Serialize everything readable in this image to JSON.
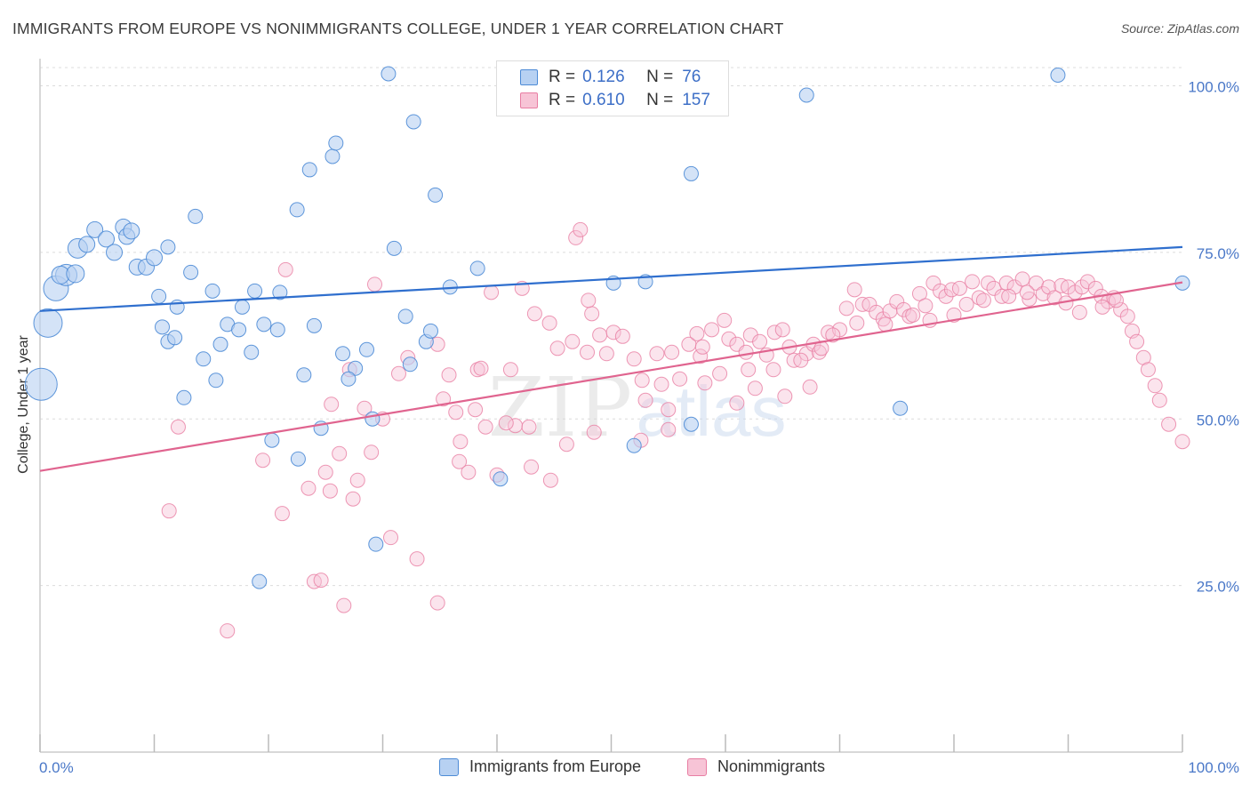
{
  "title": "IMMIGRANTS FROM EUROPE VS NONIMMIGRANTS COLLEGE, UNDER 1 YEAR CORRELATION CHART",
  "source": "Source: ZipAtlas.com",
  "legend": {
    "series1": {
      "r_label": "R =",
      "r_value": "0.126",
      "n_label": "N =",
      "n_value": "76"
    },
    "series2": {
      "r_label": "R =",
      "r_value": "0.610",
      "n_label": "N =",
      "n_value": "157"
    }
  },
  "colors": {
    "blue_fill": "#b7d1f2",
    "blue_stroke": "#4d8bd6",
    "blue_line": "#2f6fce",
    "pink_fill": "#f7c4d6",
    "pink_stroke": "#e87ea3",
    "pink_line": "#e0648f",
    "tick_label": "#4a78c8",
    "grid": "#dcdcdc"
  },
  "chart_data": {
    "type": "scatter",
    "title": "IMMIGRANTS FROM EUROPE VS NONIMMIGRANTS COLLEGE, UNDER 1 YEAR CORRELATION CHART",
    "ylabel": "College, Under 1 year",
    "xlabel": "",
    "xlim": [
      0,
      100
    ],
    "ylim": [
      0,
      103
    ],
    "x_tick_labels": [
      "0.0%",
      "100.0%"
    ],
    "y_tick_labels": [
      "100.0%",
      "75.0%",
      "50.0%",
      "25.0%"
    ],
    "y_tick_values": [
      100,
      75,
      50,
      25
    ],
    "grid": "horizontal dashed",
    "legend_position": "top-center",
    "watermark": "ZIPatlas",
    "series": [
      {
        "name": "Immigrants from Europe",
        "color": "#4d8bd6",
        "trend": {
          "x": [
            0,
            100
          ],
          "y": [
            66.2,
            75.8
          ]
        },
        "points": [
          [
            0.1,
            55.2,
            18
          ],
          [
            0.7,
            64.4,
            16
          ],
          [
            1.4,
            69.6,
            14
          ],
          [
            2.3,
            71.6,
            12
          ],
          [
            3.3,
            75.6,
            11
          ],
          [
            1.8,
            71.6,
            10
          ],
          [
            3.1,
            71.8,
            10
          ],
          [
            4.1,
            76.2,
            9
          ],
          [
            4.8,
            78.4,
            9
          ],
          [
            5.8,
            77.0,
            9
          ],
          [
            6.5,
            75.0,
            9
          ],
          [
            7.3,
            78.8,
            9
          ],
          [
            7.6,
            77.4,
            9
          ],
          [
            8.0,
            78.2,
            9
          ],
          [
            8.5,
            72.8,
            9
          ],
          [
            9.3,
            72.8,
            9
          ],
          [
            10.0,
            74.2,
            9
          ],
          [
            10.4,
            68.4,
            8
          ],
          [
            10.7,
            63.8,
            8
          ],
          [
            11.2,
            61.6,
            8
          ],
          [
            11.8,
            62.2,
            8
          ],
          [
            11.2,
            75.8,
            8
          ],
          [
            12.0,
            66.8,
            8
          ],
          [
            12.6,
            53.2,
            8
          ],
          [
            13.2,
            72.0,
            8
          ],
          [
            13.6,
            80.4,
            8
          ],
          [
            14.3,
            59.0,
            8
          ],
          [
            15.1,
            69.2,
            8
          ],
          [
            15.4,
            55.8,
            8
          ],
          [
            15.8,
            61.2,
            8
          ],
          [
            16.4,
            64.2,
            8
          ],
          [
            17.4,
            63.4,
            8
          ],
          [
            17.7,
            66.8,
            8
          ],
          [
            18.5,
            60.0,
            8
          ],
          [
            18.8,
            69.2,
            8
          ],
          [
            19.2,
            25.6,
            8
          ],
          [
            19.6,
            64.2,
            8
          ],
          [
            20.3,
            46.8,
            8
          ],
          [
            20.8,
            63.4,
            8
          ],
          [
            21.0,
            69.0,
            8
          ],
          [
            22.5,
            81.4,
            8
          ],
          [
            22.6,
            44.0,
            8
          ],
          [
            23.1,
            56.6,
            8
          ],
          [
            23.6,
            87.4,
            8
          ],
          [
            24.0,
            64.0,
            8
          ],
          [
            24.6,
            48.6,
            8
          ],
          [
            25.6,
            89.4,
            8
          ],
          [
            25.9,
            91.4,
            8
          ],
          [
            26.5,
            59.8,
            8
          ],
          [
            27.6,
            57.6,
            8
          ],
          [
            27.0,
            56.0,
            8
          ],
          [
            28.6,
            60.4,
            8
          ],
          [
            29.1,
            50.0,
            8
          ],
          [
            29.4,
            31.2,
            8
          ],
          [
            30.5,
            101.8,
            8
          ],
          [
            31.0,
            75.6,
            8
          ],
          [
            32.0,
            65.4,
            8
          ],
          [
            32.4,
            58.2,
            8
          ],
          [
            32.7,
            94.6,
            8
          ],
          [
            33.8,
            61.6,
            8
          ],
          [
            34.2,
            63.2,
            8
          ],
          [
            34.6,
            83.6,
            8
          ],
          [
            35.9,
            69.8,
            8
          ],
          [
            38.3,
            72.6,
            8
          ],
          [
            40.3,
            41.0,
            8
          ],
          [
            50.0,
            100.6,
            8
          ],
          [
            50.2,
            70.4,
            8
          ],
          [
            52.0,
            46.0,
            8
          ],
          [
            53.0,
            70.6,
            8
          ],
          [
            57.0,
            49.2,
            8
          ],
          [
            57.0,
            86.8,
            8
          ],
          [
            67.1,
            98.6,
            8
          ],
          [
            75.3,
            51.6,
            8
          ],
          [
            89.1,
            101.6,
            8
          ],
          [
            100.0,
            70.4,
            8
          ],
          [
            0.0,
            0.0,
            0
          ]
        ]
      },
      {
        "name": "Nonimmigrants",
        "color": "#e87ea3",
        "trend": {
          "x": [
            0,
            100
          ],
          "y": [
            42.2,
            70.5
          ]
        },
        "points": [
          [
            11.3,
            36.2
          ],
          [
            12.1,
            48.8
          ],
          [
            16.4,
            18.2
          ],
          [
            19.5,
            43.8
          ],
          [
            21.2,
            35.8
          ],
          [
            21.5,
            72.4
          ],
          [
            23.5,
            39.6
          ],
          [
            24.0,
            25.6
          ],
          [
            24.6,
            25.8
          ],
          [
            25.0,
            42.0
          ],
          [
            25.4,
            39.2
          ],
          [
            25.5,
            52.2
          ],
          [
            26.2,
            44.8
          ],
          [
            27.1,
            57.4
          ],
          [
            27.4,
            38.0
          ],
          [
            27.8,
            40.8
          ],
          [
            28.4,
            51.6
          ],
          [
            29.0,
            45.0
          ],
          [
            29.3,
            70.2
          ],
          [
            30.0,
            50.0
          ],
          [
            30.7,
            32.2
          ],
          [
            31.4,
            56.8
          ],
          [
            32.2,
            59.2
          ],
          [
            33.0,
            29.0
          ],
          [
            34.8,
            61.2
          ],
          [
            35.3,
            53.0
          ],
          [
            35.8,
            56.6
          ],
          [
            36.4,
            51.0
          ],
          [
            36.7,
            43.6
          ],
          [
            37.5,
            42.0
          ],
          [
            38.1,
            51.4
          ],
          [
            38.3,
            57.4
          ],
          [
            38.6,
            57.6
          ],
          [
            39.0,
            48.8
          ],
          [
            39.5,
            69.0
          ],
          [
            40.0,
            41.6
          ],
          [
            41.2,
            57.4
          ],
          [
            41.6,
            49.0
          ],
          [
            42.2,
            69.6
          ],
          [
            42.8,
            48.8
          ],
          [
            43.3,
            65.8
          ],
          [
            44.6,
            64.4
          ],
          [
            45.3,
            60.6
          ],
          [
            46.1,
            46.2
          ],
          [
            46.6,
            61.6
          ],
          [
            46.9,
            77.2
          ],
          [
            47.3,
            78.4
          ],
          [
            47.9,
            60.0
          ],
          [
            48.3,
            65.8
          ],
          [
            49.0,
            62.6
          ],
          [
            49.6,
            59.8
          ],
          [
            50.2,
            63.0
          ],
          [
            51.0,
            62.4
          ],
          [
            52.0,
            59.0
          ],
          [
            52.7,
            55.8
          ],
          [
            53.0,
            52.8
          ],
          [
            54.0,
            59.8
          ],
          [
            54.4,
            55.2
          ],
          [
            55.0,
            51.4
          ],
          [
            55.3,
            60.0
          ],
          [
            56.0,
            56.0
          ],
          [
            56.8,
            61.2
          ],
          [
            57.5,
            62.8
          ],
          [
            57.8,
            59.4
          ],
          [
            58.2,
            55.4
          ],
          [
            58.8,
            63.4
          ],
          [
            59.5,
            56.8
          ],
          [
            59.9,
            64.8
          ],
          [
            60.3,
            62.0
          ],
          [
            61.0,
            61.2
          ],
          [
            61.8,
            60.0
          ],
          [
            62.2,
            62.6
          ],
          [
            63.0,
            61.6
          ],
          [
            63.6,
            59.6
          ],
          [
            64.3,
            63.0
          ],
          [
            65.0,
            63.4
          ],
          [
            65.6,
            60.8
          ],
          [
            66.0,
            58.8
          ],
          [
            67.1,
            59.8
          ],
          [
            67.7,
            61.2
          ],
          [
            68.2,
            60.0
          ],
          [
            69.0,
            63.0
          ],
          [
            70.0,
            63.4
          ],
          [
            70.6,
            66.6
          ],
          [
            71.3,
            69.4
          ],
          [
            72.0,
            67.2
          ],
          [
            72.6,
            67.2
          ],
          [
            73.2,
            66.0
          ],
          [
            73.8,
            65.0
          ],
          [
            74.4,
            66.2
          ],
          [
            75.0,
            67.6
          ],
          [
            75.6,
            66.4
          ],
          [
            76.1,
            65.4
          ],
          [
            77.0,
            68.8
          ],
          [
            77.5,
            67.0
          ],
          [
            78.2,
            70.4
          ],
          [
            78.8,
            69.2
          ],
          [
            79.3,
            68.4
          ],
          [
            79.8,
            69.4
          ],
          [
            80.5,
            69.6
          ],
          [
            81.1,
            67.2
          ],
          [
            81.6,
            70.6
          ],
          [
            82.2,
            68.2
          ],
          [
            83.0,
            70.4
          ],
          [
            83.5,
            69.6
          ],
          [
            84.2,
            68.4
          ],
          [
            84.6,
            70.4
          ],
          [
            85.3,
            69.8
          ],
          [
            86.0,
            71.0
          ],
          [
            86.6,
            68.0
          ],
          [
            87.2,
            70.4
          ],
          [
            87.8,
            68.8
          ],
          [
            88.3,
            69.8
          ],
          [
            88.8,
            68.2
          ],
          [
            89.4,
            70.0
          ],
          [
            90.0,
            69.8
          ],
          [
            90.6,
            69.0
          ],
          [
            91.2,
            69.8
          ],
          [
            91.7,
            70.6
          ],
          [
            92.4,
            69.6
          ],
          [
            92.9,
            68.4
          ],
          [
            93.5,
            67.6
          ],
          [
            94.0,
            68.2
          ],
          [
            94.6,
            66.4
          ],
          [
            95.2,
            65.4
          ],
          [
            95.6,
            63.2
          ],
          [
            96.0,
            61.6
          ],
          [
            96.6,
            59.2
          ],
          [
            97.0,
            57.4
          ],
          [
            97.6,
            55.0
          ],
          [
            98.0,
            52.8
          ],
          [
            98.8,
            49.2
          ],
          [
            100.0,
            46.6
          ],
          [
            26.6,
            22.0
          ],
          [
            34.8,
            22.4
          ],
          [
            43.0,
            42.8
          ],
          [
            40.8,
            49.4
          ],
          [
            44.7,
            40.8
          ],
          [
            48.0,
            67.8
          ],
          [
            48.5,
            48.0
          ],
          [
            55.0,
            48.4
          ],
          [
            58.0,
            60.8
          ],
          [
            61.0,
            52.4
          ],
          [
            62.0,
            57.4
          ],
          [
            64.2,
            57.4
          ],
          [
            66.6,
            58.8
          ],
          [
            68.4,
            60.6
          ],
          [
            69.4,
            62.6
          ],
          [
            71.5,
            64.4
          ],
          [
            74.0,
            64.2
          ],
          [
            76.4,
            65.6
          ],
          [
            77.9,
            64.8
          ],
          [
            80.0,
            65.6
          ],
          [
            82.6,
            67.8
          ],
          [
            84.8,
            68.4
          ],
          [
            86.4,
            69.0
          ],
          [
            89.8,
            67.4
          ],
          [
            91.0,
            66.0
          ],
          [
            93.0,
            66.8
          ],
          [
            94.2,
            67.8
          ],
          [
            36.8,
            46.6
          ],
          [
            52.6,
            46.8
          ],
          [
            62.6,
            54.6
          ],
          [
            67.4,
            54.8
          ],
          [
            65.2,
            53.4
          ]
        ]
      }
    ]
  },
  "bottom_legend": {
    "item1": "Immigrants from Europe",
    "item2": "Nonimmigrants"
  }
}
